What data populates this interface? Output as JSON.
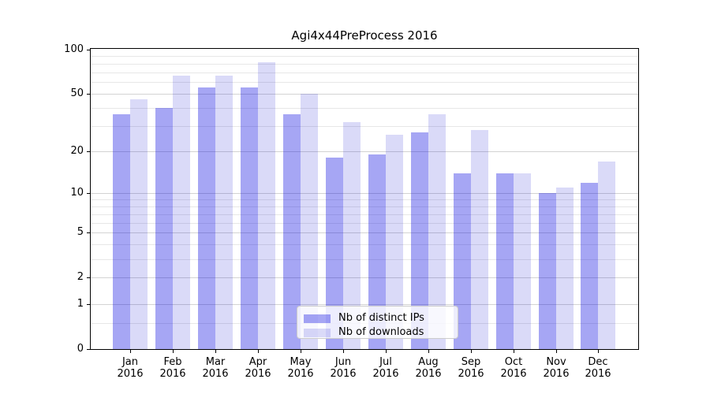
{
  "title": "Agi4x44PreProcess 2016",
  "colors": {
    "ips_bar": "rgba(0,0,224,0.35)",
    "downloads_bar": "rgba(8,8,208,0.15)",
    "grid_major": "#d3d3d3",
    "grid_minor": "#e7e7e7",
    "spine": "#000000",
    "legend_bg": "rgba(255,255,255,0.8)",
    "legend_border": "#cccccc",
    "text": "#000000"
  },
  "legend": {
    "items": [
      {
        "label": "Nb of distinct IPs",
        "color_key": "ips"
      },
      {
        "label": "Nb of downloads",
        "color_key": "downloads"
      }
    ],
    "position": "lower center inside plot"
  },
  "chart_data": {
    "type": "bar",
    "title": "Agi4x44PreProcess 2016",
    "categories": [
      {
        "month": "Jan",
        "year": "2016"
      },
      {
        "month": "Feb",
        "year": "2016"
      },
      {
        "month": "Mar",
        "year": "2016"
      },
      {
        "month": "Apr",
        "year": "2016"
      },
      {
        "month": "May",
        "year": "2016"
      },
      {
        "month": "Jun",
        "year": "2016"
      },
      {
        "month": "Jul",
        "year": "2016"
      },
      {
        "month": "Aug",
        "year": "2016"
      },
      {
        "month": "Sep",
        "year": "2016"
      },
      {
        "month": "Oct",
        "year": "2016"
      },
      {
        "month": "Nov",
        "year": "2016"
      },
      {
        "month": "Dec",
        "year": "2016"
      }
    ],
    "series": [
      {
        "name": "Nb of distinct IPs",
        "color_key": "ips",
        "values": [
          36,
          40,
          55,
          55,
          36,
          18,
          19,
          27,
          14,
          14,
          10,
          12
        ]
      },
      {
        "name": "Nb of downloads",
        "color_key": "downloads",
        "values": [
          46,
          66,
          66,
          82,
          50,
          32,
          26,
          36,
          28,
          14,
          11,
          17
        ]
      }
    ],
    "xlabel": "",
    "ylabel": "",
    "yscale": "log10(1+x)",
    "ylim": [
      0,
      100
    ],
    "y_major_ticks": [
      0,
      1,
      2,
      5,
      10,
      20,
      50,
      100
    ],
    "y_minor_gridlines": [
      0.5,
      3,
      4,
      6,
      7,
      8,
      9,
      30,
      40,
      60,
      70,
      80,
      90
    ],
    "grid": true,
    "legend_position": "lower center"
  }
}
